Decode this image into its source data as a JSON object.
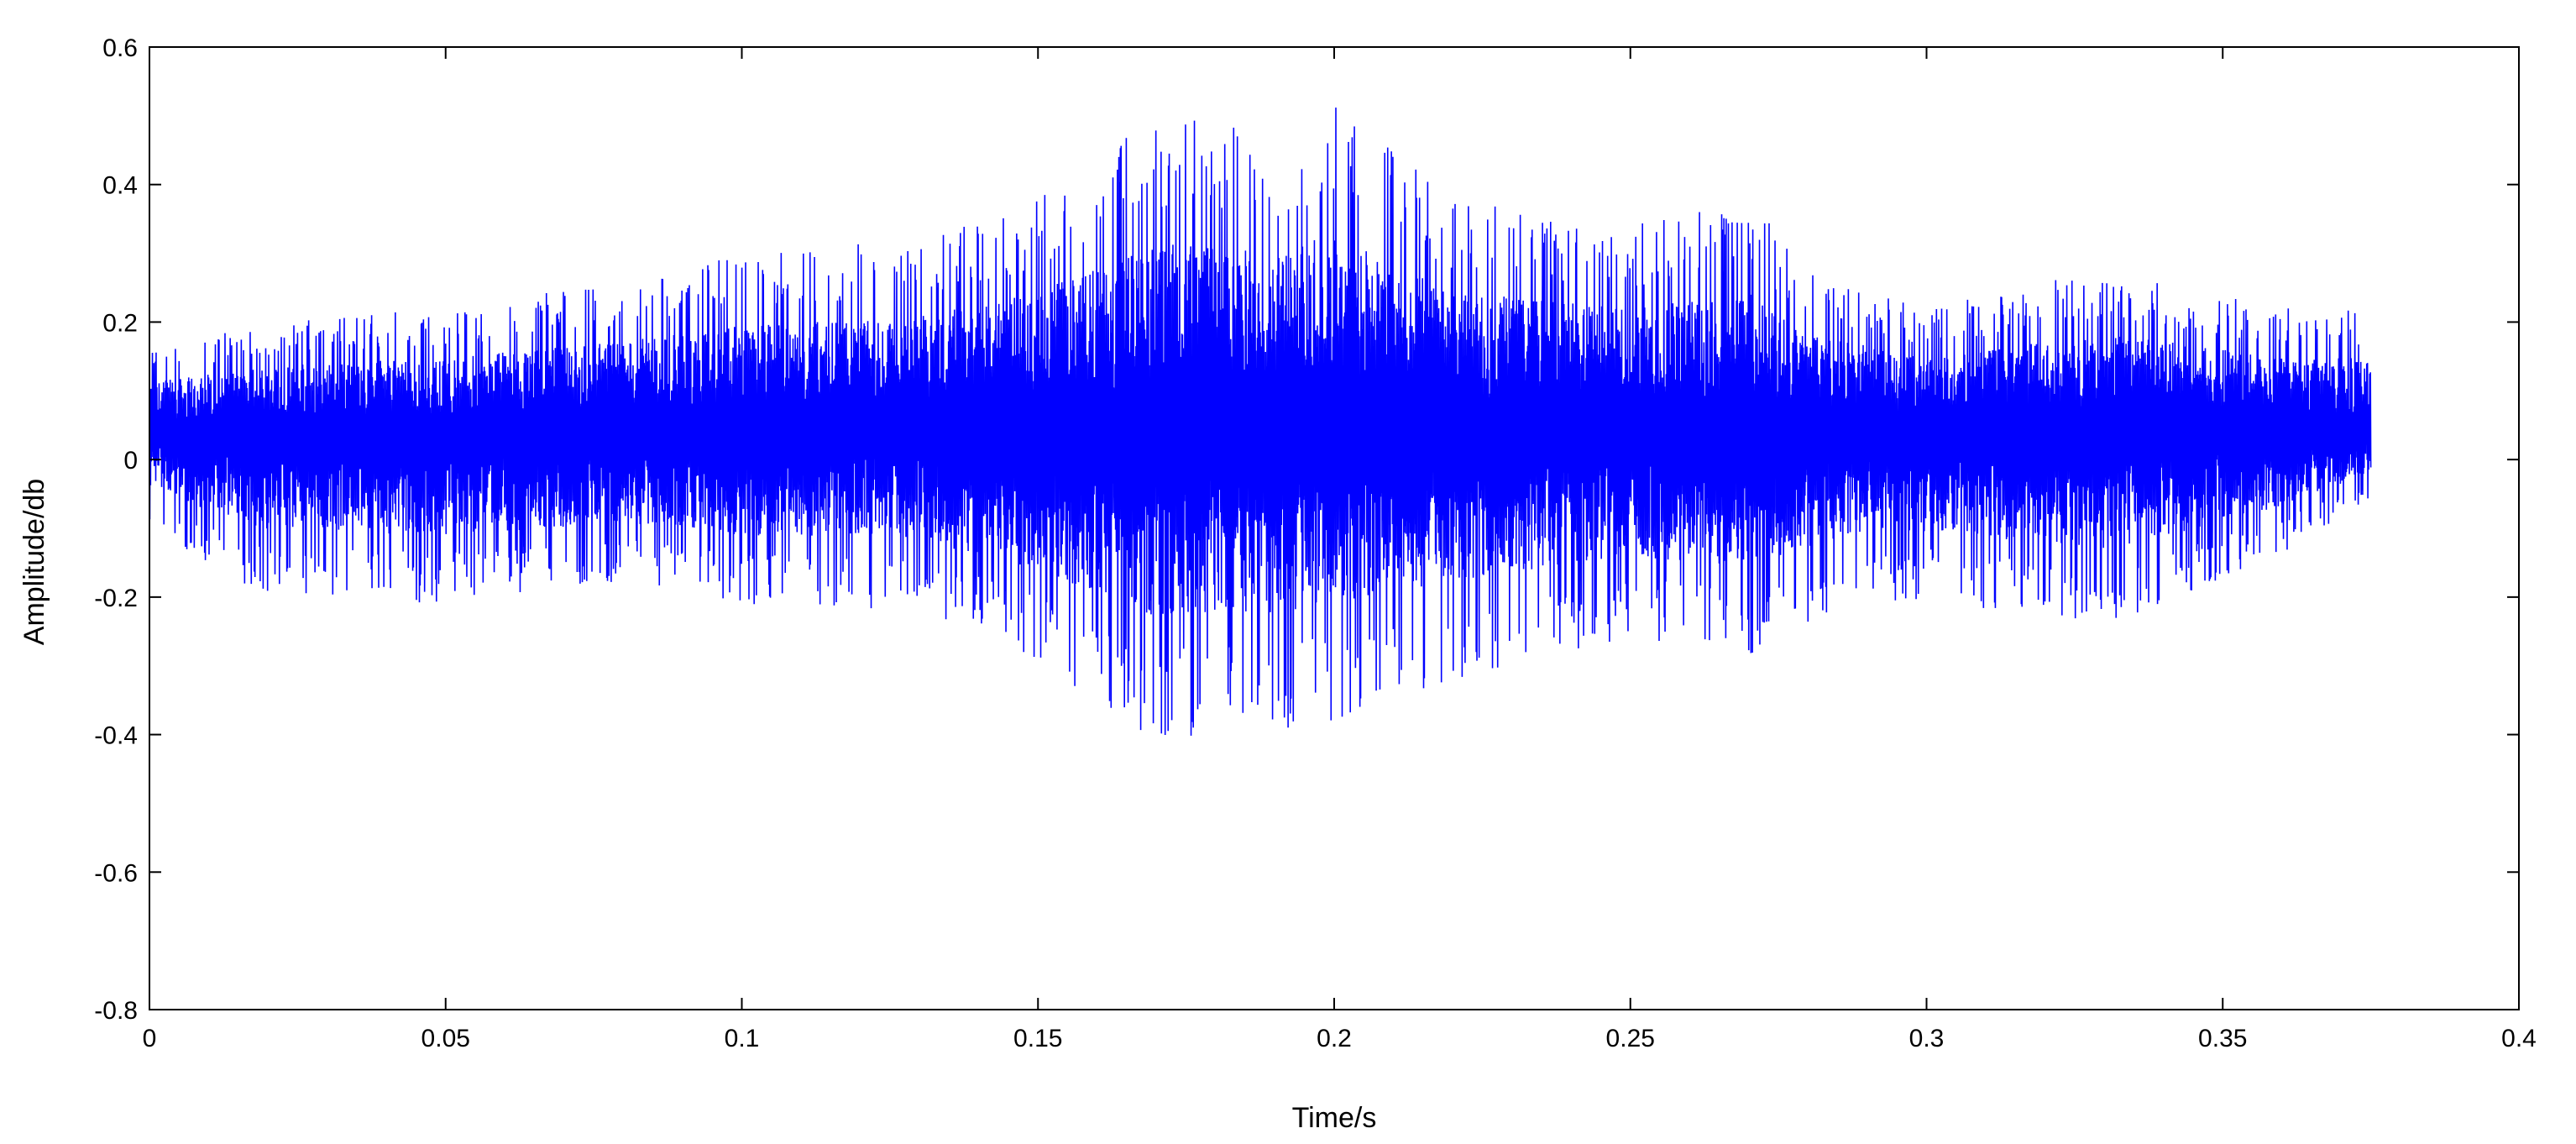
{
  "chart_data": {
    "type": "line",
    "title": "",
    "xlabel": "Time/s",
    "ylabel": "Amplitude/db",
    "xlim": [
      0,
      0.4
    ],
    "ylim": [
      -0.8,
      0.6
    ],
    "x_ticks": [
      0,
      0.05,
      0.1,
      0.15,
      0.2,
      0.25,
      0.3,
      0.35,
      0.4
    ],
    "x_tick_labels": [
      "0",
      "0.05",
      "0.1",
      "0.15",
      "0.2",
      "0.25",
      "0.3",
      "0.35",
      "0.4"
    ],
    "y_ticks": [
      0.6,
      0.4,
      0.2,
      0,
      -0.2,
      -0.4,
      -0.6,
      -0.8
    ],
    "y_tick_labels": [
      "0.6",
      "0.4",
      "0.2",
      "0",
      "-0.2",
      "-0.4",
      "-0.6",
      "-0.8"
    ],
    "grid": false,
    "legend": "none",
    "series_color": "#0000ff",
    "series": [
      {
        "x_start": 0,
        "x_end": 0.375,
        "baseline": 0.04,
        "envelope_times": [
          0,
          0.02,
          0.05,
          0.08,
          0.1,
          0.13,
          0.15,
          0.17,
          0.19,
          0.2,
          0.22,
          0.25,
          0.27,
          0.28,
          0.3,
          0.33,
          0.36,
          0.375
        ],
        "envelope_max": [
          0.16,
          0.2,
          0.22,
          0.26,
          0.3,
          0.32,
          0.38,
          0.5,
          0.48,
          0.52,
          0.38,
          0.34,
          0.38,
          0.28,
          0.22,
          0.28,
          0.22,
          0.22
        ],
        "envelope_min": [
          -0.1,
          -0.2,
          -0.21,
          -0.18,
          -0.21,
          -0.22,
          -0.3,
          -0.41,
          -0.4,
          -0.38,
          -0.32,
          -0.26,
          -0.29,
          -0.24,
          -0.2,
          -0.25,
          -0.14,
          -0.06
        ]
      }
    ]
  }
}
